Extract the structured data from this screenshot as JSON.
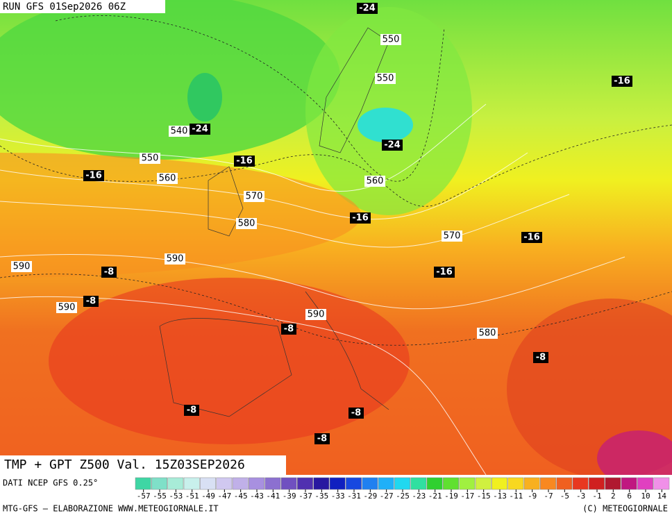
{
  "header": {
    "run": "RUN GFS 01Sep2026 06Z"
  },
  "map": {
    "contour_labels": [
      "550",
      "550",
      "540",
      "550",
      "560",
      "560",
      "570",
      "580",
      "570",
      "590",
      "590",
      "590",
      "590",
      "580"
    ],
    "temperature_labels": [
      "-24",
      "-24",
      "-24",
      "-16",
      "-16",
      "-16",
      "-16",
      "-16",
      "-16",
      "-8",
      "-8",
      "-8",
      "-8",
      "-8",
      "-8",
      "-8"
    ]
  },
  "footer": {
    "title": "TMP + GPT Z500 Val. 15Z03SEP2026",
    "source": "DATI NCEP GFS 0.25°",
    "credit": "MTG-GFS — ELABORAZIONE WWW.METEOGIORNALE.IT",
    "copyright": "(C) METEOGIORNALE"
  },
  "colorbar": {
    "ticks": [
      -57,
      -55,
      -53,
      -51,
      -49,
      -47,
      -45,
      -43,
      -41,
      -39,
      -37,
      -35,
      -33,
      -31,
      -29,
      -27,
      -25,
      -23,
      -21,
      -19,
      -17,
      -15,
      -13,
      -11,
      -9,
      -7,
      -5,
      -3,
      -1,
      2,
      6,
      10,
      14
    ],
    "colors": [
      "#3fd6a4",
      "#7fe0c8",
      "#a8ecd8",
      "#c8f0ec",
      "#d8e0f4",
      "#d0c8f0",
      "#c0b0e8",
      "#a890e0",
      "#8c70d0",
      "#7050c0",
      "#5030b0",
      "#2818a0",
      "#1020c0",
      "#1848e0",
      "#2080f0",
      "#20b0f8",
      "#20d8f0",
      "#30e0a0",
      "#30d030",
      "#60e030",
      "#a0f040",
      "#d0f040",
      "#f0f020",
      "#f8d820",
      "#f8b020",
      "#f88820",
      "#f06020",
      "#e83820",
      "#d02020",
      "#b01830",
      "#c01880",
      "#e040c0",
      "#f090e8"
    ]
  }
}
